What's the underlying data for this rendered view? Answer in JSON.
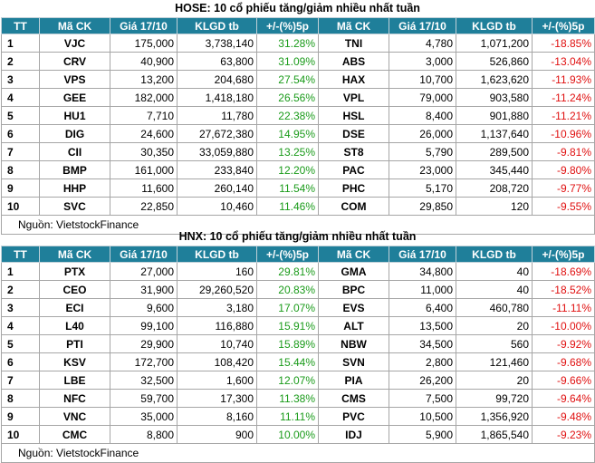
{
  "hose": {
    "title": "HOSE: 10 cổ phiếu tăng/giảm nhiều nhất tuần",
    "headers": [
      "TT",
      "Mã CK",
      "Giá 17/10",
      "KLGD tb",
      "+/-(%)5p",
      "Mã CK",
      "Giá 17/10",
      "KLGD tb",
      "+/-(%)5p"
    ],
    "rows": [
      {
        "tt": "1",
        "code1": "VJC",
        "price1": "175,000",
        "vol1": "3,738,140",
        "pct1": "31.28%",
        "code2": "TNI",
        "price2": "4,780",
        "vol2": "1,071,200",
        "pct2": "-18.85%"
      },
      {
        "tt": "2",
        "code1": "CRV",
        "price1": "40,900",
        "vol1": "63,800",
        "pct1": "31.09%",
        "code2": "ABS",
        "price2": "3,000",
        "vol2": "526,860",
        "pct2": "-13.04%"
      },
      {
        "tt": "3",
        "code1": "VPS",
        "price1": "13,200",
        "vol1": "204,680",
        "pct1": "27.54%",
        "code2": "HAX",
        "price2": "10,700",
        "vol2": "1,623,620",
        "pct2": "-11.93%"
      },
      {
        "tt": "4",
        "code1": "GEE",
        "price1": "182,000",
        "vol1": "1,418,180",
        "pct1": "26.56%",
        "code2": "VPL",
        "price2": "79,000",
        "vol2": "903,580",
        "pct2": "-11.24%"
      },
      {
        "tt": "5",
        "code1": "HU1",
        "price1": "7,710",
        "vol1": "11,780",
        "pct1": "22.38%",
        "code2": "HSL",
        "price2": "8,400",
        "vol2": "901,880",
        "pct2": "-11.21%"
      },
      {
        "tt": "6",
        "code1": "DIG",
        "price1": "24,600",
        "vol1": "27,672,380",
        "pct1": "14.95%",
        "code2": "DSE",
        "price2": "26,000",
        "vol2": "1,137,640",
        "pct2": "-10.96%"
      },
      {
        "tt": "7",
        "code1": "CII",
        "price1": "30,350",
        "vol1": "33,059,880",
        "pct1": "13.25%",
        "code2": "ST8",
        "price2": "5,790",
        "vol2": "289,500",
        "pct2": "-9.81%"
      },
      {
        "tt": "8",
        "code1": "BMP",
        "price1": "161,000",
        "vol1": "233,840",
        "pct1": "12.20%",
        "code2": "PAC",
        "price2": "23,000",
        "vol2": "345,440",
        "pct2": "-9.80%"
      },
      {
        "tt": "9",
        "code1": "HHP",
        "price1": "11,600",
        "vol1": "260,140",
        "pct1": "11.54%",
        "code2": "PHC",
        "price2": "5,170",
        "vol2": "208,720",
        "pct2": "-9.77%"
      },
      {
        "tt": "10",
        "code1": "SVC",
        "price1": "22,850",
        "vol1": "10,460",
        "pct1": "11.46%",
        "code2": "COM",
        "price2": "29,850",
        "vol2": "120",
        "pct2": "-9.55%"
      }
    ],
    "source": "Nguồn: VietstockFinance"
  },
  "hnx": {
    "title": "HNX: 10 cổ phiếu tăng/giảm nhiều nhất tuần",
    "headers": [
      "TT",
      "Mã CK",
      "Giá 17/10",
      "KLGD tb",
      "+/-(%)5p",
      "Mã CK",
      "Giá 17/10",
      "KLGD tb",
      "+/-(%)5p"
    ],
    "rows": [
      {
        "tt": "1",
        "code1": "PTX",
        "price1": "27,000",
        "vol1": "160",
        "pct1": "29.81%",
        "code2": "GMA",
        "price2": "34,800",
        "vol2": "40",
        "pct2": "-18.69%"
      },
      {
        "tt": "2",
        "code1": "CEO",
        "price1": "31,900",
        "vol1": "29,260,520",
        "pct1": "20.83%",
        "code2": "BPC",
        "price2": "11,000",
        "vol2": "40",
        "pct2": "-18.52%"
      },
      {
        "tt": "3",
        "code1": "ECI",
        "price1": "9,600",
        "vol1": "3,180",
        "pct1": "17.07%",
        "code2": "EVS",
        "price2": "6,400",
        "vol2": "460,780",
        "pct2": "-11.11%"
      },
      {
        "tt": "4",
        "code1": "L40",
        "price1": "99,100",
        "vol1": "116,880",
        "pct1": "15.91%",
        "code2": "ALT",
        "price2": "13,500",
        "vol2": "20",
        "pct2": "-10.00%"
      },
      {
        "tt": "5",
        "code1": "PTI",
        "price1": "29,900",
        "vol1": "10,740",
        "pct1": "15.89%",
        "code2": "NBW",
        "price2": "34,500",
        "vol2": "560",
        "pct2": "-9.92%"
      },
      {
        "tt": "6",
        "code1": "KSV",
        "price1": "172,700",
        "vol1": "108,420",
        "pct1": "15.44%",
        "code2": "SVN",
        "price2": "2,800",
        "vol2": "121,460",
        "pct2": "-9.68%"
      },
      {
        "tt": "7",
        "code1": "LBE",
        "price1": "32,500",
        "vol1": "1,600",
        "pct1": "12.07%",
        "code2": "PIA",
        "price2": "26,200",
        "vol2": "20",
        "pct2": "-9.66%"
      },
      {
        "tt": "8",
        "code1": "NFC",
        "price1": "59,700",
        "vol1": "17,300",
        "pct1": "11.38%",
        "code2": "CMS",
        "price2": "7,500",
        "vol2": "99,720",
        "pct2": "-9.64%"
      },
      {
        "tt": "9",
        "code1": "VNC",
        "price1": "35,000",
        "vol1": "8,160",
        "pct1": "11.11%",
        "code2": "PVC",
        "price2": "10,500",
        "vol2": "1,356,920",
        "pct2": "-9.48%"
      },
      {
        "tt": "10",
        "code1": "CMC",
        "price1": "8,800",
        "vol1": "900",
        "pct1": "10.00%",
        "code2": "IDJ",
        "price2": "5,900",
        "vol2": "1,865,540",
        "pct2": "-9.23%"
      }
    ],
    "source": "Nguồn: VietstockFinance"
  },
  "colors": {
    "header_bg": "#1f7f9a",
    "up": "#1a9b1a",
    "down": "#e01010",
    "border": "#a6a6a6"
  }
}
